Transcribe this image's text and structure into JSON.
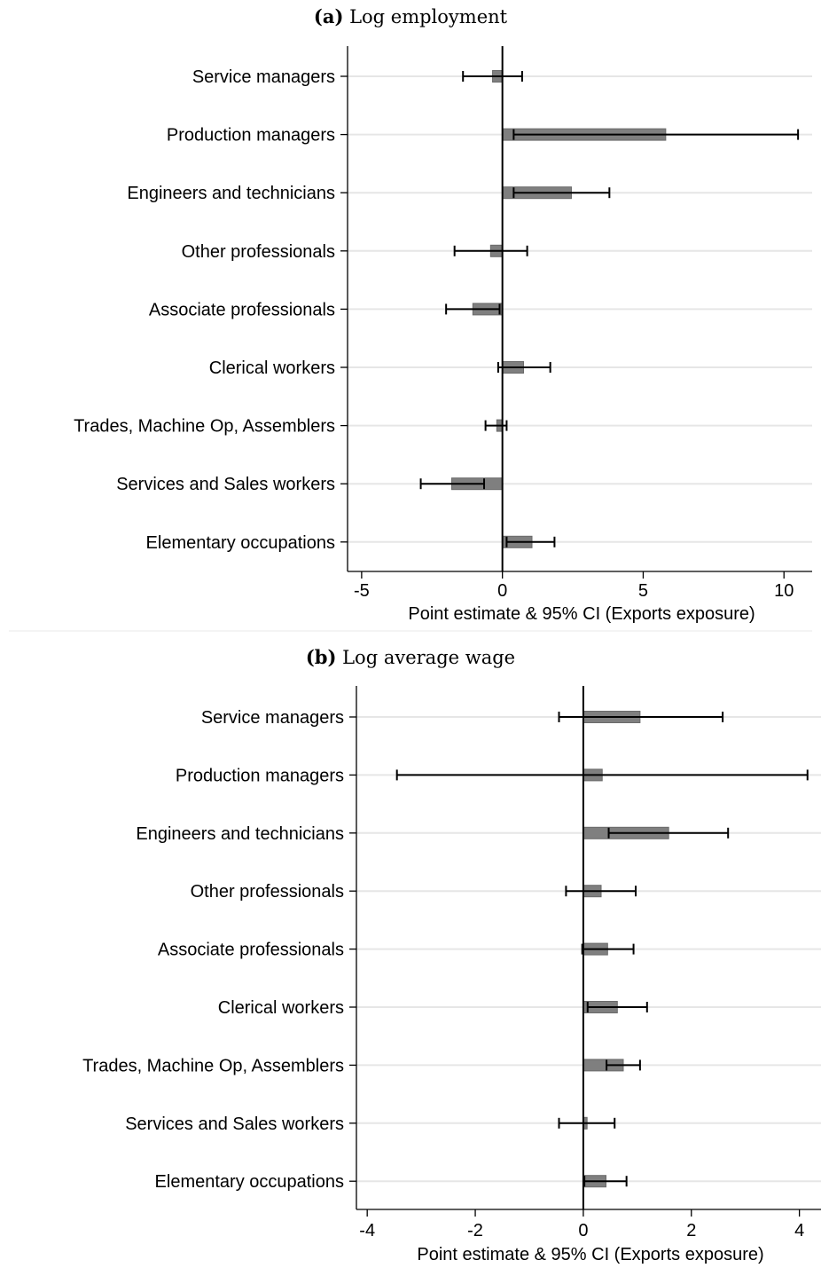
{
  "chart_data": [
    {
      "type": "bar",
      "orientation": "horizontal",
      "title_letter": "(a)",
      "title": "Log employment",
      "xlabel": "Point estimate & 95% CI (Exports exposure)",
      "ylabel": "",
      "xlim": [
        -5.5,
        11
      ],
      "xticks": [
        -5,
        0,
        5,
        10
      ],
      "xtick_labels": [
        "-5",
        "0",
        "5",
        "10"
      ],
      "grid": true,
      "categories": [
        "Service managers",
        "Production managers",
        "Engineers and technicians",
        "Other professionals",
        "Associate professionals",
        "Clerical workers",
        "Trades, Machine Op, Assemblers",
        "Services and Sales workers",
        "Elementary occupations"
      ],
      "series": [
        {
          "name": "Point estimate",
          "values": [
            -0.35,
            5.8,
            2.45,
            -0.42,
            -1.05,
            0.75,
            -0.2,
            -1.8,
            1.05
          ]
        },
        {
          "name": "95% CI lower",
          "values": [
            -1.4,
            0.4,
            0.4,
            -1.7,
            -2.0,
            -0.15,
            -0.6,
            -2.9,
            0.15
          ]
        },
        {
          "name": "95% CI upper",
          "values": [
            0.7,
            10.5,
            3.8,
            0.88,
            -0.1,
            1.7,
            0.15,
            -0.65,
            1.85
          ]
        }
      ]
    },
    {
      "type": "bar",
      "orientation": "horizontal",
      "title_letter": "(b)",
      "title": "Log average wage",
      "xlabel": "Point estimate & 95% CI (Exports exposure)",
      "ylabel": "",
      "xlim": [
        -4.2,
        4.4
      ],
      "xticks": [
        -4,
        -2,
        0,
        2,
        4
      ],
      "xtick_labels": [
        "-4",
        "-2",
        "0",
        "2",
        "4"
      ],
      "grid": true,
      "categories": [
        "Service managers",
        "Production managers",
        "Engineers and technicians",
        "Other professionals",
        "Associate professionals",
        "Clerical workers",
        "Trades, Machine Op, Assemblers",
        "Services and Sales workers",
        "Elementary occupations"
      ],
      "series": [
        {
          "name": "Point estimate",
          "values": [
            1.05,
            0.35,
            1.58,
            0.33,
            0.45,
            0.63,
            0.74,
            0.07,
            0.42
          ]
        },
        {
          "name": "95% CI lower",
          "values": [
            -0.45,
            -3.45,
            0.47,
            -0.32,
            -0.02,
            0.08,
            0.43,
            -0.45,
            0.02
          ]
        },
        {
          "name": "95% CI upper",
          "values": [
            2.58,
            4.15,
            2.68,
            0.97,
            0.93,
            1.18,
            1.05,
            0.58,
            0.8
          ]
        }
      ]
    }
  ]
}
